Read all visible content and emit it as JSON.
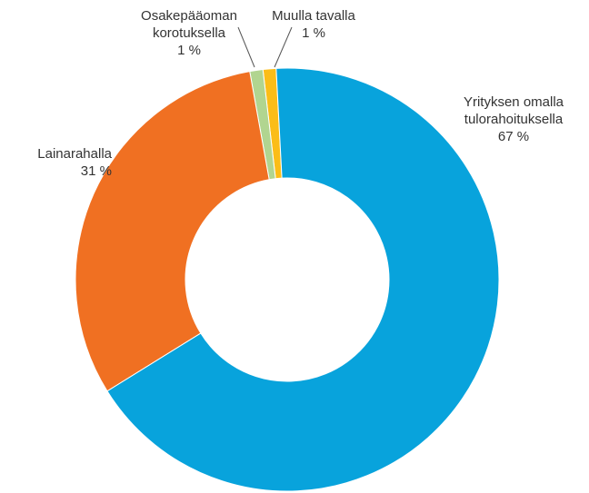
{
  "chart_data": {
    "type": "donut",
    "categories": [
      "Yrityksen omalla\ntulorahoituksella",
      "Lainarahalla",
      "Osakepääoman\nkorotuksella",
      "Muulla tavalla"
    ],
    "values": [
      67,
      31,
      1,
      1
    ],
    "value_labels": [
      "67 %",
      "31 %",
      "1 %",
      "1 %"
    ],
    "colors": [
      "#08a3dc",
      "#f07022",
      "#b1d590",
      "#fbbd18"
    ]
  }
}
